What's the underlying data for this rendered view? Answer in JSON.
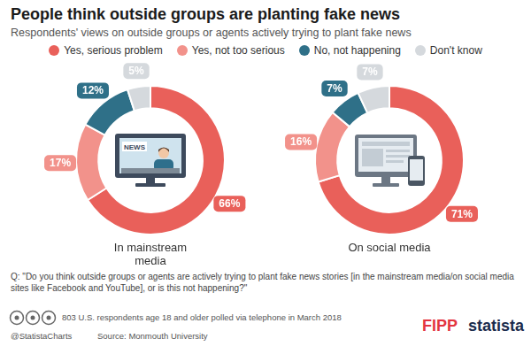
{
  "title": "People think outside groups are planting fake news",
  "subtitle": "Respondents' views on outside groups or agents actively trying to plant fake news",
  "legend": "top",
  "chart_data": [
    {
      "type": "doughnut",
      "title": "In mainstream media",
      "icon_text": "NEWS",
      "categories": [
        "Yes, serious problem",
        "Yes, not too serious",
        "No, not happening",
        "Don't know"
      ],
      "values": [
        66,
        17,
        12,
        5
      ],
      "value_labels": [
        "66%",
        "17%",
        "12%",
        "5%"
      ],
      "colors": [
        "#e9605a",
        "#f2928b",
        "#2f7088",
        "#d5d9dd"
      ],
      "data_labels": true
    },
    {
      "type": "doughnut",
      "title": "On social media",
      "categories": [
        "Yes, serious problem",
        "Yes, not too serious",
        "No, not happening",
        "Don't know"
      ],
      "values": [
        71,
        16,
        7,
        7
      ],
      "value_labels": [
        "71%",
        "16%",
        "7%",
        "7%"
      ],
      "colors": [
        "#e9605a",
        "#f2928b",
        "#2f7088",
        "#d5d9dd"
      ],
      "data_labels": true
    }
  ],
  "question": "Q: \"Do you think outside groups or agents are actively trying to plant fake news stories [in the mainstream media/on social media sites like Facebook and YouTube], or is this not happening?\"",
  "footer": {
    "sample": "803 U.S. respondents age 18 and older polled via telephone in March 2018",
    "source": "Source: Monmouth University",
    "handle": "@StatistaCharts",
    "logos": [
      "FIPP",
      "statista"
    ]
  }
}
